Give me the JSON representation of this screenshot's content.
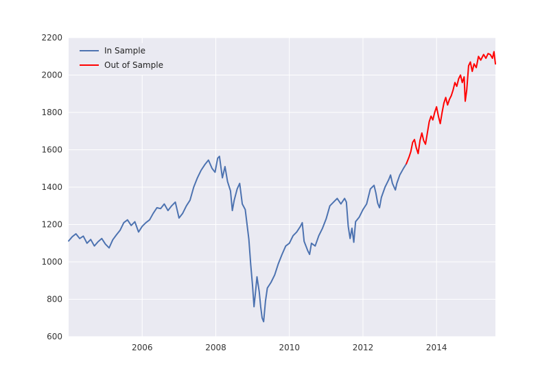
{
  "chart_data": {
    "type": "line",
    "title": "",
    "xlabel": "",
    "ylabel": "",
    "xlim": [
      2004.0,
      2015.6
    ],
    "ylim": [
      600,
      2200
    ],
    "x_ticks": [
      2006,
      2008,
      2010,
      2012,
      2014
    ],
    "y_ticks": [
      600,
      800,
      1000,
      1200,
      1400,
      1600,
      1800,
      2000,
      2200
    ],
    "grid": true,
    "legend_position": "top-left",
    "series": [
      {
        "name": "In Sample",
        "color": "#4c72b0",
        "points": [
          [
            2004.0,
            1112
          ],
          [
            2004.1,
            1135
          ],
          [
            2004.2,
            1150
          ],
          [
            2004.3,
            1125
          ],
          [
            2004.4,
            1138
          ],
          [
            2004.5,
            1100
          ],
          [
            2004.6,
            1120
          ],
          [
            2004.7,
            1085
          ],
          [
            2004.8,
            1108
          ],
          [
            2004.9,
            1125
          ],
          [
            2005.0,
            1095
          ],
          [
            2005.1,
            1075
          ],
          [
            2005.2,
            1118
          ],
          [
            2005.3,
            1145
          ],
          [
            2005.4,
            1170
          ],
          [
            2005.5,
            1210
          ],
          [
            2005.6,
            1225
          ],
          [
            2005.7,
            1195
          ],
          [
            2005.8,
            1215
          ],
          [
            2005.9,
            1160
          ],
          [
            2006.0,
            1190
          ],
          [
            2006.1,
            1210
          ],
          [
            2006.2,
            1225
          ],
          [
            2006.3,
            1260
          ],
          [
            2006.4,
            1290
          ],
          [
            2006.5,
            1285
          ],
          [
            2006.6,
            1310
          ],
          [
            2006.7,
            1275
          ],
          [
            2006.8,
            1300
          ],
          [
            2006.9,
            1320
          ],
          [
            2007.0,
            1235
          ],
          [
            2007.1,
            1260
          ],
          [
            2007.2,
            1300
          ],
          [
            2007.3,
            1330
          ],
          [
            2007.4,
            1400
          ],
          [
            2007.5,
            1450
          ],
          [
            2007.6,
            1490
          ],
          [
            2007.7,
            1520
          ],
          [
            2007.8,
            1545
          ],
          [
            2007.9,
            1500
          ],
          [
            2007.98,
            1480
          ],
          [
            2008.05,
            1555
          ],
          [
            2008.1,
            1565
          ],
          [
            2008.18,
            1450
          ],
          [
            2008.25,
            1510
          ],
          [
            2008.32,
            1430
          ],
          [
            2008.4,
            1380
          ],
          [
            2008.45,
            1275
          ],
          [
            2008.5,
            1330
          ],
          [
            2008.58,
            1390
          ],
          [
            2008.65,
            1420
          ],
          [
            2008.72,
            1310
          ],
          [
            2008.8,
            1280
          ],
          [
            2008.9,
            1120
          ],
          [
            2008.95,
            985
          ],
          [
            2009.0,
            870
          ],
          [
            2009.04,
            760
          ],
          [
            2009.08,
            840
          ],
          [
            2009.12,
            920
          ],
          [
            2009.18,
            840
          ],
          [
            2009.22,
            760
          ],
          [
            2009.26,
            700
          ],
          [
            2009.3,
            680
          ],
          [
            2009.35,
            790
          ],
          [
            2009.4,
            860
          ],
          [
            2009.5,
            890
          ],
          [
            2009.6,
            930
          ],
          [
            2009.7,
            990
          ],
          [
            2009.8,
            1040
          ],
          [
            2009.9,
            1085
          ],
          [
            2010.0,
            1100
          ],
          [
            2010.1,
            1140
          ],
          [
            2010.2,
            1160
          ],
          [
            2010.3,
            1190
          ],
          [
            2010.35,
            1210
          ],
          [
            2010.4,
            1110
          ],
          [
            2010.5,
            1060
          ],
          [
            2010.55,
            1040
          ],
          [
            2010.6,
            1100
          ],
          [
            2010.7,
            1085
          ],
          [
            2010.8,
            1140
          ],
          [
            2010.9,
            1180
          ],
          [
            2011.0,
            1230
          ],
          [
            2011.1,
            1300
          ],
          [
            2011.2,
            1320
          ],
          [
            2011.3,
            1340
          ],
          [
            2011.4,
            1310
          ],
          [
            2011.5,
            1340
          ],
          [
            2011.55,
            1320
          ],
          [
            2011.6,
            1190
          ],
          [
            2011.65,
            1125
          ],
          [
            2011.7,
            1180
          ],
          [
            2011.75,
            1105
          ],
          [
            2011.8,
            1215
          ],
          [
            2011.9,
            1240
          ],
          [
            2012.0,
            1280
          ],
          [
            2012.1,
            1310
          ],
          [
            2012.2,
            1390
          ],
          [
            2012.3,
            1410
          ],
          [
            2012.35,
            1370
          ],
          [
            2012.4,
            1315
          ],
          [
            2012.45,
            1290
          ],
          [
            2012.5,
            1345
          ],
          [
            2012.6,
            1400
          ],
          [
            2012.7,
            1440
          ],
          [
            2012.75,
            1465
          ],
          [
            2012.8,
            1420
          ],
          [
            2012.88,
            1385
          ],
          [
            2012.92,
            1420
          ],
          [
            2013.0,
            1465
          ],
          [
            2013.1,
            1500
          ],
          [
            2013.18,
            1525
          ]
        ]
      },
      {
        "name": "Out of Sample",
        "color": "#ff0000",
        "points": [
          [
            2013.18,
            1525
          ],
          [
            2013.25,
            1560
          ],
          [
            2013.3,
            1590
          ],
          [
            2013.35,
            1640
          ],
          [
            2013.4,
            1655
          ],
          [
            2013.45,
            1610
          ],
          [
            2013.5,
            1580
          ],
          [
            2013.55,
            1650
          ],
          [
            2013.6,
            1690
          ],
          [
            2013.65,
            1650
          ],
          [
            2013.7,
            1630
          ],
          [
            2013.75,
            1690
          ],
          [
            2013.8,
            1750
          ],
          [
            2013.85,
            1780
          ],
          [
            2013.9,
            1760
          ],
          [
            2013.95,
            1800
          ],
          [
            2014.0,
            1830
          ],
          [
            2014.05,
            1780
          ],
          [
            2014.1,
            1740
          ],
          [
            2014.15,
            1800
          ],
          [
            2014.2,
            1850
          ],
          [
            2014.25,
            1880
          ],
          [
            2014.3,
            1840
          ],
          [
            2014.35,
            1870
          ],
          [
            2014.4,
            1890
          ],
          [
            2014.45,
            1920
          ],
          [
            2014.5,
            1960
          ],
          [
            2014.55,
            1940
          ],
          [
            2014.6,
            1980
          ],
          [
            2014.65,
            2000
          ],
          [
            2014.7,
            1960
          ],
          [
            2014.75,
            1990
          ],
          [
            2014.78,
            1860
          ],
          [
            2014.82,
            1920
          ],
          [
            2014.87,
            2050
          ],
          [
            2014.92,
            2070
          ],
          [
            2014.97,
            2020
          ],
          [
            2015.02,
            2060
          ],
          [
            2015.08,
            2040
          ],
          [
            2015.14,
            2100
          ],
          [
            2015.2,
            2080
          ],
          [
            2015.28,
            2110
          ],
          [
            2015.34,
            2090
          ],
          [
            2015.4,
            2115
          ],
          [
            2015.46,
            2110
          ],
          [
            2015.52,
            2090
          ],
          [
            2015.56,
            2125
          ],
          [
            2015.6,
            2060
          ]
        ]
      }
    ]
  }
}
